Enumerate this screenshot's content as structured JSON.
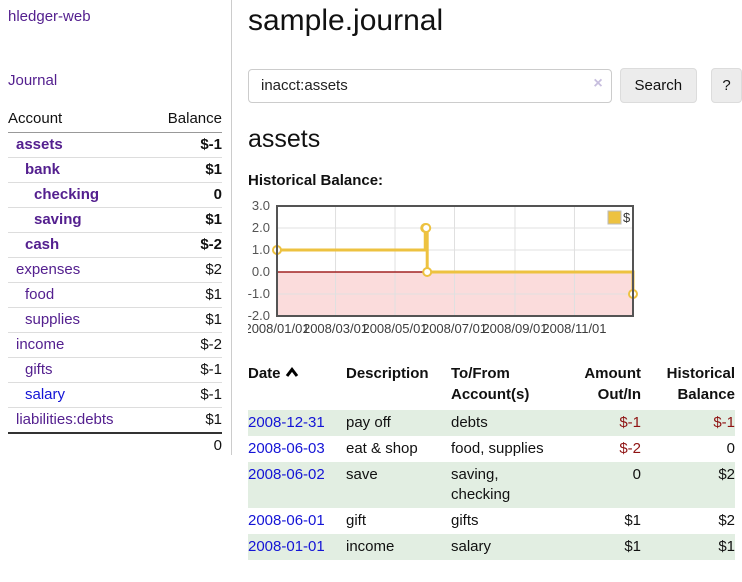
{
  "colors": {
    "link_purple": "#54208f",
    "link_blue": "#1414d6",
    "negative_strong": "#8f1313",
    "negative_soft": "#b56f6f",
    "row_stripe_green": "#e2eee2",
    "chart_series_gold": "#edc240",
    "chart_negative_fill": "#fbdcdc",
    "chart_zero_line": "#a22323",
    "chart_border": "#545454"
  },
  "sidebar": {
    "app_title": "hledger-web",
    "nav_journal": "Journal",
    "table": {
      "col_account": "Account",
      "col_balance": "Balance",
      "rows": [
        {
          "name": "assets",
          "balance": "$-1"
        },
        {
          "name": "bank",
          "balance": "$1"
        },
        {
          "name": "checking",
          "balance": "0"
        },
        {
          "name": "saving",
          "balance": "$1"
        },
        {
          "name": "cash",
          "balance": "$-2"
        },
        {
          "name": "expenses",
          "balance": "$2"
        },
        {
          "name": "food",
          "balance": "$1"
        },
        {
          "name": "supplies",
          "balance": "$1"
        },
        {
          "name": "income",
          "balance": "$-2"
        },
        {
          "name": "gifts",
          "balance": "$-1"
        },
        {
          "name": "salary",
          "balance": "$-1"
        },
        {
          "name": "liabilities:debts",
          "balance": "$1"
        }
      ],
      "total": "0"
    }
  },
  "main": {
    "title": "sample.journal",
    "search": {
      "value": "inacct:assets",
      "clear_icon": "×",
      "button": "Search",
      "help": "?"
    },
    "account_title": "assets",
    "chart_label": "Historical Balance:"
  },
  "chart_data": {
    "type": "line",
    "step": true,
    "title": "Historical Balance",
    "series": [
      {
        "name": "$",
        "color": "#edc240",
        "points": [
          [
            "2008-01-01",
            1
          ],
          [
            "2008-06-01",
            2
          ],
          [
            "2008-06-02",
            2
          ],
          [
            "2008-06-03",
            0
          ],
          [
            "2008-12-31",
            -1
          ]
        ]
      }
    ],
    "ylim": [
      -2,
      3
    ],
    "y_ticks": [
      "3.0",
      "2.0",
      "1.0",
      "0.0",
      "-1.0",
      "-2.0"
    ],
    "xlim": [
      "2008-01-01",
      "2008-12-31"
    ],
    "x_ticks": [
      "2008/01/01",
      "2008/03/01",
      "2008/05/01",
      "2008/07/01",
      "2008/09/01",
      "2008/11/01"
    ],
    "legend": {
      "label": "$",
      "position": "top-right"
    },
    "grid": true,
    "negative_region_fill": "#fbdcdc",
    "zero_line_color": "#a22323"
  },
  "register": {
    "headers": {
      "date": "Date",
      "description": "Description",
      "tofrom_line1": "To/From",
      "tofrom_line2": "Account(s)",
      "amount_line1": "Amount",
      "amount_line2": "Out/In",
      "hist_line1": "Historical",
      "hist_line2": "Balance"
    },
    "rows": [
      {
        "date": "2008-12-31",
        "description": "pay off",
        "accounts": "debts",
        "amount": "$-1",
        "balance": "$-1"
      },
      {
        "date": "2008-06-03",
        "description": "eat & shop",
        "accounts": "food, supplies",
        "amount": "$-2",
        "balance": "0"
      },
      {
        "date": "2008-06-02",
        "description": "save",
        "accounts": "saving, checking",
        "amount": "0",
        "balance": "$2"
      },
      {
        "date": "2008-06-01",
        "description": "gift",
        "accounts": "gifts",
        "amount": "$1",
        "balance": "$2"
      },
      {
        "date": "2008-01-01",
        "description": "income",
        "accounts": "salary",
        "amount": "$1",
        "balance": "$1"
      }
    ]
  }
}
